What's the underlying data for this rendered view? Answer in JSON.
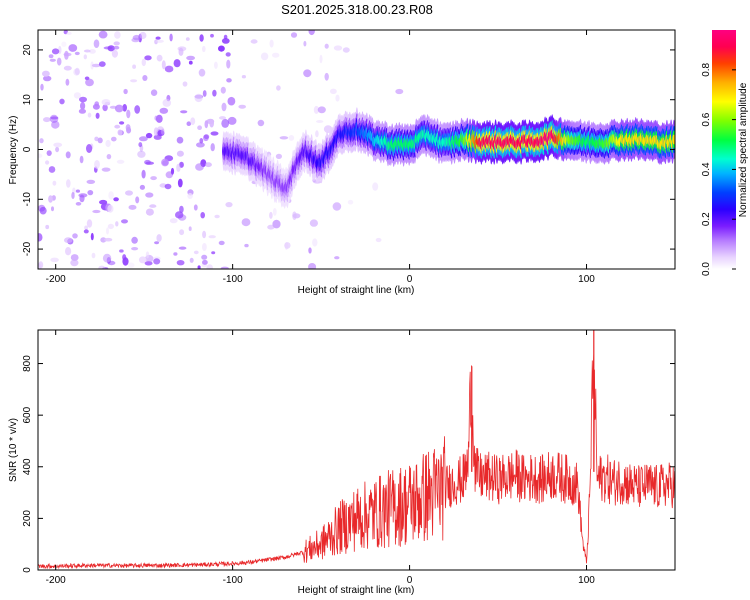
{
  "page": {
    "title": "S201.2025.318.00.23.R08"
  },
  "colors": {
    "snr_line": "#e8282a",
    "colorbar_stops": [
      "#ffffff",
      "#f2e6ff",
      "#d9b8ff",
      "#b57aff",
      "#8a2be2",
      "#5a00ff",
      "#0000ff",
      "#00b4ff",
      "#00ffd0",
      "#00ff40",
      "#c8ff00",
      "#ffff00",
      "#ffb000",
      "#ff4000",
      "#ff0060",
      "#ff0080"
    ]
  },
  "chart_data": [
    {
      "type": "heatmap",
      "title": "S201.2025.318.00.23.R08",
      "xlabel": "Height of straight line (km)",
      "ylabel": "Frequency (Hz)",
      "xlim": [
        -210,
        150
      ],
      "ylim": [
        -24,
        24
      ],
      "x_ticks": [
        -200,
        -100,
        0,
        100
      ],
      "y_ticks": [
        -20,
        -10,
        0,
        10,
        20
      ],
      "grid": false,
      "colorbar": {
        "label": "Normalized spectral amplitude",
        "range": [
          0,
          0.96
        ],
        "ticks": [
          0.0,
          0.2,
          0.4,
          0.6,
          0.8
        ],
        "tick_labels": [
          "0.0",
          "0.2",
          "0.4",
          "0.6",
          "0.8"
        ]
      },
      "ridge": {
        "description_points_x": [
          -105,
          -90,
          -80,
          -70,
          -60,
          -50,
          -40,
          -30,
          -20,
          -10,
          0,
          10,
          20,
          30,
          40,
          50,
          60,
          70,
          80,
          90,
          100,
          110,
          120,
          130,
          140,
          150
        ],
        "frequency": [
          0,
          -2,
          -5,
          -8,
          0,
          -3,
          3,
          4,
          2,
          1,
          1,
          3,
          1,
          2,
          1.5,
          1.5,
          1.5,
          1.5,
          2.5,
          2,
          1.5,
          1.5,
          2,
          2,
          1.5,
          1.5
        ],
        "amplitude": [
          0.2,
          0.2,
          0.15,
          0.15,
          0.2,
          0.25,
          0.25,
          0.3,
          0.4,
          0.5,
          0.5,
          0.45,
          0.45,
          0.55,
          0.9,
          0.92,
          0.9,
          0.9,
          0.95,
          0.6,
          0.5,
          0.55,
          0.7,
          0.7,
          0.7,
          0.7
        ]
      },
      "notes": "Scattered low-amplitude noise (purple) dominates from -210 to -30 km; coherent signal band near 0-3 Hz from -30 to 150 km with peak normalized amplitude ~0.95 between 35 and 90 km."
    },
    {
      "type": "line",
      "xlabel": "Height of straight line (km)",
      "ylabel": "SNR (10 * v/v)",
      "xlim": [
        -210,
        150
      ],
      "ylim": [
        0,
        930
      ],
      "x_ticks": [
        -200,
        -100,
        0,
        100
      ],
      "y_ticks": [
        0,
        200,
        400,
        600,
        800
      ],
      "grid": false,
      "series": [
        {
          "x": [
            -210,
            -200,
            -180,
            -160,
            -140,
            -120,
            -100,
            -90,
            -80,
            -70,
            -60,
            -50,
            -45,
            -40,
            -35,
            -30,
            -25,
            -20,
            -15,
            -10,
            -5,
            0,
            5,
            10,
            15,
            20,
            25,
            30,
            33,
            35,
            37,
            40,
            45,
            50,
            55,
            60,
            65,
            70,
            75,
            80,
            85,
            90,
            95,
            98,
            100,
            102,
            104,
            106,
            110,
            115,
            120,
            125,
            130,
            135,
            140,
            145,
            150
          ],
          "y": [
            15,
            15,
            18,
            17,
            18,
            20,
            25,
            30,
            40,
            50,
            70,
            100,
            130,
            160,
            180,
            200,
            210,
            220,
            230,
            240,
            250,
            260,
            270,
            290,
            300,
            320,
            340,
            350,
            400,
            790,
            380,
            360,
            360,
            350,
            360,
            370,
            350,
            360,
            350,
            370,
            360,
            350,
            330,
            100,
            30,
            300,
            930,
            350,
            360,
            340,
            350,
            330,
            320,
            330,
            320,
            330,
            330
          ],
          "peaks": [
            {
              "x": 35,
              "y": 790
            },
            {
              "x": 104,
              "y": 930
            }
          ]
        }
      ]
    }
  ]
}
